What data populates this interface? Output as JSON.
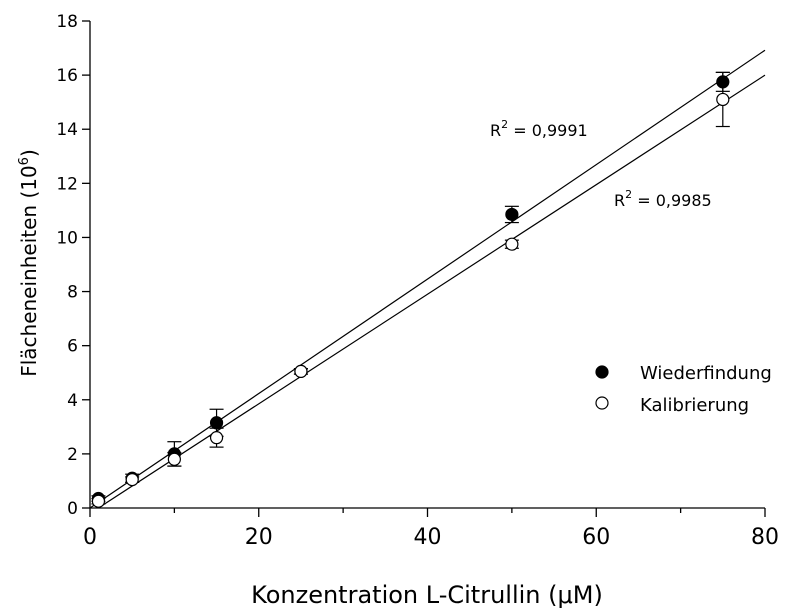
{
  "chart_data": {
    "type": "scatter",
    "xlabel": "Konzentration L-Citrullin (",
    "xlabel_symbol": "μ",
    "xlabel_suffix": "M)",
    "ylabel": "Flächeneinheiten (10",
    "ylabel_exponent": "6",
    "ylabel_suffix": ")",
    "xlim": [
      0,
      80
    ],
    "ylim": [
      0,
      18
    ],
    "x_ticks": [
      0,
      20,
      40,
      60,
      80
    ],
    "y_ticks": [
      0,
      2,
      4,
      6,
      8,
      10,
      12,
      14,
      16,
      18
    ],
    "x_minor_ticks": [
      10,
      30,
      50,
      70
    ],
    "grid": false,
    "legend_position": "lower-right",
    "series": [
      {
        "name": "Wiederfindung",
        "marker": "filled-circle",
        "color": "#000000",
        "points": [
          {
            "x": 1,
            "y": 0.35,
            "err": 0.1
          },
          {
            "x": 5,
            "y": 1.1,
            "err": 0.15
          },
          {
            "x": 10,
            "y": 2.0,
            "err": 0.45
          },
          {
            "x": 15,
            "y": 3.15,
            "err": 0.5
          },
          {
            "x": 25,
            "y": 5.05,
            "err": 0.1
          },
          {
            "x": 50,
            "y": 10.85,
            "err": 0.3
          },
          {
            "x": 75,
            "y": 15.75,
            "err": 0.35
          }
        ],
        "fit": {
          "slope": 0.2115,
          "intercept": 0.0,
          "r2_label": "R",
          "r2_exp": "2",
          "r2_value": " = 0,9991"
        }
      },
      {
        "name": "Kalibrierung",
        "marker": "open-circle",
        "color": "#000000",
        "points": [
          {
            "x": 1,
            "y": 0.25,
            "err": 0.1
          },
          {
            "x": 5,
            "y": 1.05,
            "err": 0.1
          },
          {
            "x": 10,
            "y": 1.8,
            "err": 0.25
          },
          {
            "x": 15,
            "y": 2.6,
            "err": 0.35
          },
          {
            "x": 25,
            "y": 5.05,
            "err": 0.1
          },
          {
            "x": 50,
            "y": 9.75,
            "err": 0.15
          },
          {
            "x": 75,
            "y": 15.1,
            "err": 1.0
          }
        ],
        "fit": {
          "slope": 0.2025,
          "intercept": -0.2,
          "r2_label": "R",
          "r2_exp": "2",
          "r2_value": " = 0,9985"
        }
      }
    ]
  }
}
